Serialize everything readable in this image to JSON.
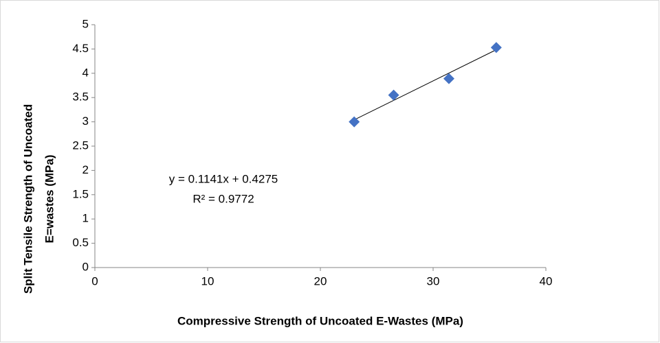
{
  "chart_data": {
    "type": "scatter",
    "x_label": "Compressive Strength of Uncoated E-Wastes (MPa)",
    "y_label": [
      "Split Tensile Strength of Uncoated",
      "E=wastes  (MPa)"
    ],
    "annotations": [
      "y = 0.1141x + 0.4275",
      "R² = 0.9772"
    ],
    "series": [
      {
        "color": "#4472c4",
        "x": [
          23,
          26.5,
          31.4,
          35.6
        ],
        "values": [
          3.0,
          3.55,
          3.89,
          4.53
        ]
      }
    ],
    "trendline": true,
    "xlim": [
      0,
      40
    ],
    "xticks": [
      0,
      10,
      20,
      30,
      40
    ],
    "ylim": [
      0,
      5
    ],
    "yticks": [
      0,
      0.5,
      1,
      1.5,
      2,
      2.5,
      3,
      3.5,
      4,
      4.5,
      5
    ],
    "grid": false
  }
}
